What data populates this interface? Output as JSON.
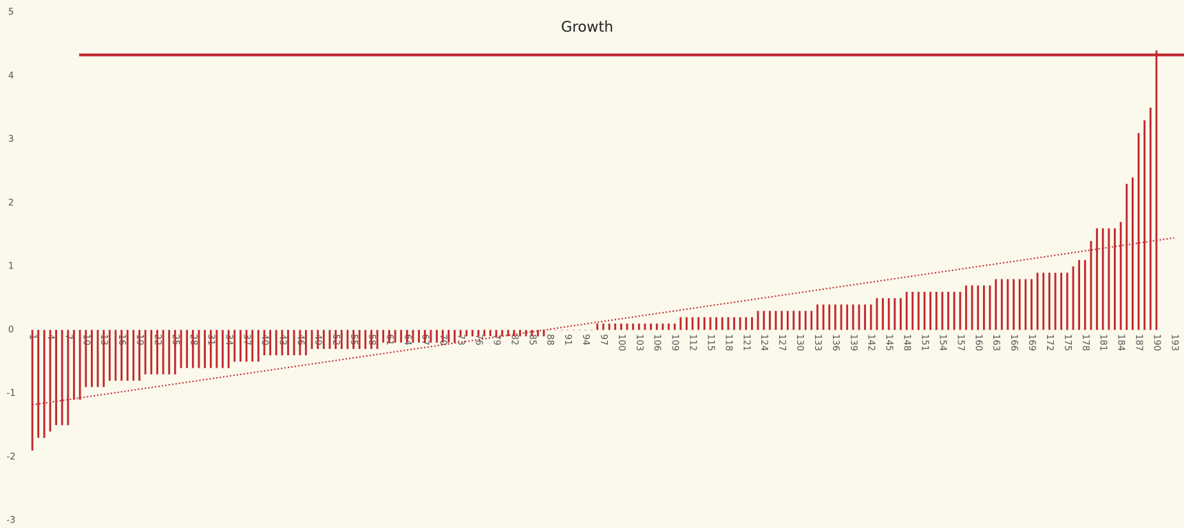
{
  "chart_data": {
    "type": "bar",
    "title": "Growth",
    "categories": [
      1,
      null,
      null,
      4,
      null,
      null,
      7,
      null,
      null,
      10,
      null,
      null,
      13,
      null,
      null,
      16,
      null,
      null,
      19,
      null,
      null,
      22,
      null,
      null,
      25,
      null,
      null,
      28,
      null,
      null,
      31,
      null,
      null,
      34,
      null,
      null,
      37,
      null,
      null,
      40,
      null,
      null,
      43,
      null,
      null,
      46,
      null,
      null,
      49,
      null,
      null,
      52,
      null,
      null,
      55,
      null,
      null,
      58,
      null,
      null,
      61,
      null,
      null,
      64,
      null,
      null,
      67,
      null,
      null,
      70,
      null,
      null,
      73,
      null,
      null,
      76,
      null,
      null,
      79,
      null,
      null,
      82,
      null,
      null,
      85,
      null,
      null,
      88,
      null,
      null,
      91,
      null,
      null,
      94,
      null,
      null,
      97,
      null,
      null,
      100,
      null,
      null,
      103,
      null,
      null,
      106,
      null,
      null,
      109,
      null,
      null,
      112,
      null,
      null,
      115,
      null,
      null,
      118,
      null,
      null,
      121,
      null,
      null,
      124,
      null,
      null,
      127,
      null,
      null,
      130,
      null,
      null,
      133,
      null,
      null,
      136,
      null,
      null,
      139,
      null,
      null,
      142,
      null,
      null,
      145,
      null,
      null,
      148,
      null,
      null,
      151,
      null,
      null,
      154,
      null,
      null,
      157,
      null,
      null,
      160,
      null,
      null,
      163,
      null,
      null,
      166,
      null,
      null,
      169,
      null,
      null,
      172,
      null,
      null,
      175,
      null,
      null,
      178,
      null,
      null,
      181,
      null,
      null,
      184,
      null,
      null,
      187,
      null,
      null,
      190,
      null,
      null,
      193
    ],
    "values": [
      -1.9,
      -1.7,
      -1.7,
      -1.6,
      -1.5,
      -1.5,
      -1.5,
      -1.1,
      -1.1,
      -0.9,
      -0.9,
      -0.9,
      -0.9,
      -0.8,
      -0.8,
      -0.8,
      -0.8,
      -0.8,
      -0.8,
      -0.7,
      -0.7,
      -0.7,
      -0.7,
      -0.7,
      -0.7,
      -0.6,
      -0.6,
      -0.6,
      -0.6,
      -0.6,
      -0.6,
      -0.6,
      -0.6,
      -0.6,
      -0.5,
      -0.5,
      -0.5,
      -0.5,
      -0.5,
      -0.4,
      -0.4,
      -0.4,
      -0.4,
      -0.4,
      -0.4,
      -0.4,
      -0.4,
      -0.3,
      -0.3,
      -0.3,
      -0.3,
      -0.3,
      -0.3,
      -0.3,
      -0.3,
      -0.3,
      -0.3,
      -0.3,
      -0.3,
      -0.2,
      -0.2,
      -0.2,
      -0.2,
      -0.2,
      -0.2,
      -0.2,
      -0.2,
      -0.2,
      -0.2,
      -0.2,
      -0.2,
      -0.2,
      -0.1,
      -0.1,
      -0.1,
      -0.1,
      -0.1,
      -0.1,
      -0.1,
      -0.1,
      -0.1,
      -0.1,
      -0.1,
      -0.1,
      -0.1,
      -0.1,
      -0.1,
      0,
      0,
      0,
      0,
      0,
      0,
      0,
      0,
      0.1,
      0.1,
      0.1,
      0.1,
      0.1,
      0.1,
      0.1,
      0.1,
      0.1,
      0.1,
      0.1,
      0.1,
      0.1,
      0.1,
      0.2,
      0.2,
      0.2,
      0.2,
      0.2,
      0.2,
      0.2,
      0.2,
      0.2,
      0.2,
      0.2,
      0.2,
      0.2,
      0.3,
      0.3,
      0.3,
      0.3,
      0.3,
      0.3,
      0.3,
      0.3,
      0.3,
      0.3,
      0.4,
      0.4,
      0.4,
      0.4,
      0.4,
      0.4,
      0.4,
      0.4,
      0.4,
      0.4,
      0.5,
      0.5,
      0.5,
      0.5,
      0.5,
      0.6,
      0.6,
      0.6,
      0.6,
      0.6,
      0.6,
      0.6,
      0.6,
      0.6,
      0.6,
      0.7,
      0.7,
      0.7,
      0.7,
      0.7,
      0.8,
      0.8,
      0.8,
      0.8,
      0.8,
      0.8,
      0.8,
      0.9,
      0.9,
      0.9,
      0.9,
      0.9,
      0.9,
      1,
      1.1,
      1.1,
      1.4,
      1.6,
      1.6,
      1.6,
      1.6,
      1.7,
      2.3,
      2.4,
      3.1,
      3.3,
      3.5,
      4.4,
      null,
      null,
      null
    ],
    "color": "#c1272d",
    "ylim": [
      -3,
      5
    ],
    "yticks": [
      -3,
      -2,
      -1,
      0,
      1,
      2,
      3,
      4,
      5
    ],
    "reference_line": 4.33,
    "trendline": [
      -1.18,
      1.45
    ]
  }
}
